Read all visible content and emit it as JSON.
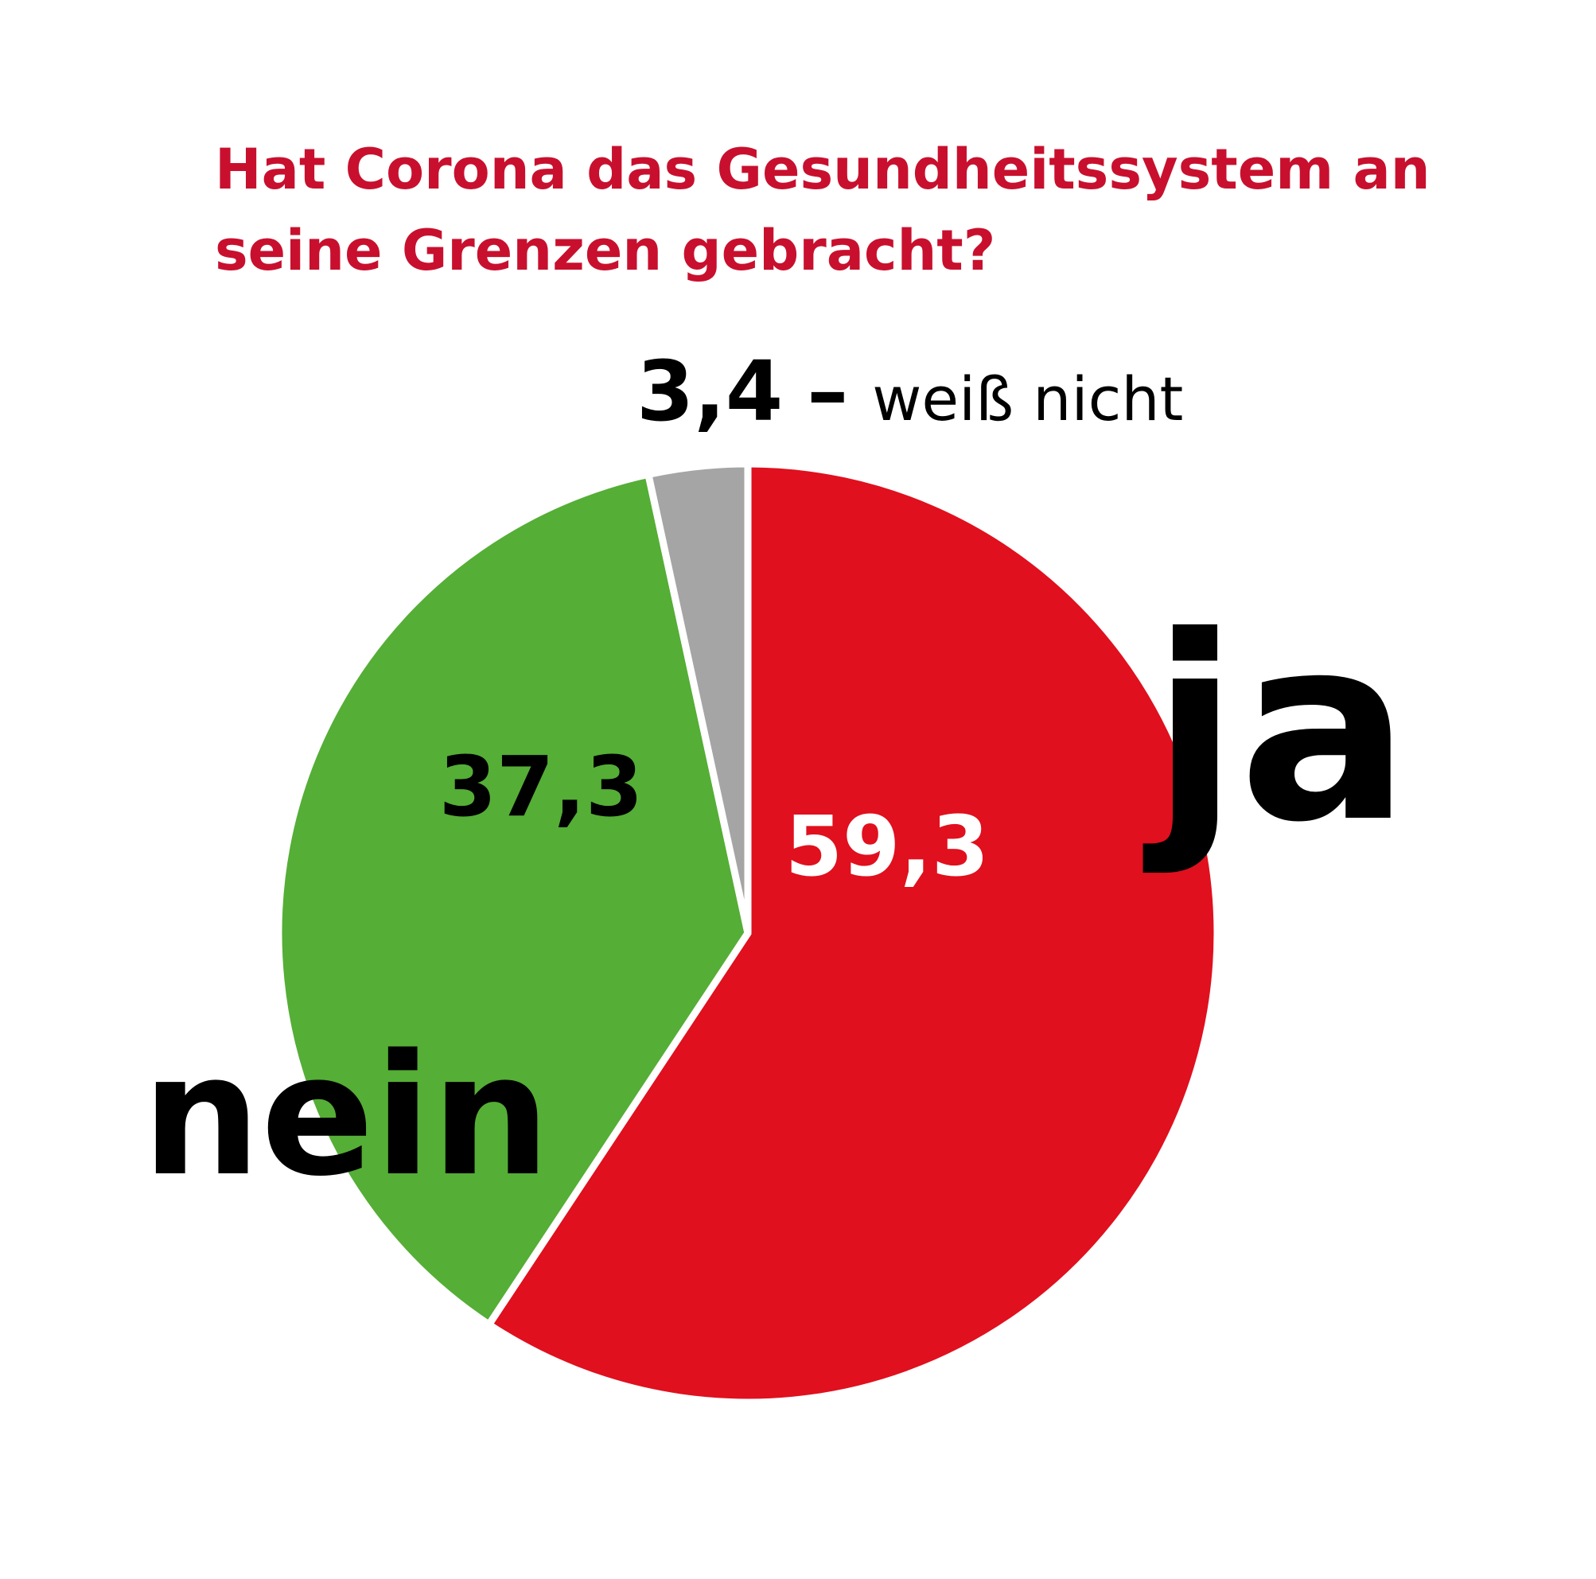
{
  "title_lines": [
    "Hat Corona das Gesundheitssystem an",
    "seine Grenzen gebracht?"
  ],
  "colors": {
    "title": "#c8102e",
    "ja": "#e0101e",
    "nein": "#55ae36",
    "weiss_nicht": "#a5a5a5",
    "separator": "#ffffff",
    "text_dark": "#000000",
    "text_light": "#ffffff"
  },
  "chart_data": {
    "type": "pie",
    "title": "Hat Corona das Gesundheitssystem an seine Grenzen gebracht?",
    "start_angle_deg": 0,
    "direction": "clockwise",
    "slices": [
      {
        "key": "ja",
        "category": "ja",
        "value": 59.3,
        "value_label": "59,3",
        "color": "#e0101e",
        "value_text_color": "#ffffff"
      },
      {
        "key": "nein",
        "category": "nein",
        "value": 37.3,
        "value_label": "37,3",
        "color": "#55ae36",
        "value_text_color": "#000000"
      },
      {
        "key": "weiss_nicht",
        "category": "weiß nicht",
        "value": 3.4,
        "value_label": "3,4",
        "color": "#a5a5a5",
        "value_text_color": "#000000"
      }
    ],
    "weiss_nicht_separator": "–"
  }
}
